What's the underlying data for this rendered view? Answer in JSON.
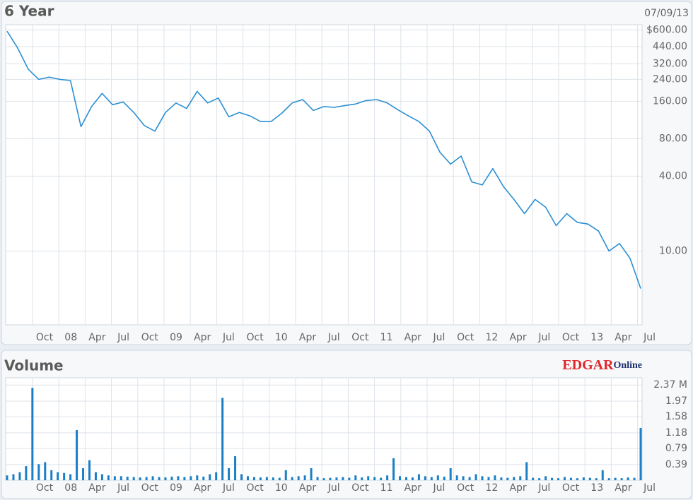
{
  "chart_data": [
    {
      "type": "line",
      "title": "6 Year",
      "date": "07/09/13",
      "color": "#2b8fd2",
      "log_scale": true,
      "grid": true,
      "ylim": [
        2.55,
        660
      ],
      "yticks": [
        {
          "value": 600,
          "label": "$600.00"
        },
        {
          "value": 440,
          "label": "440.00"
        },
        {
          "value": 320,
          "label": "320.00"
        },
        {
          "value": 240,
          "label": "240.00"
        },
        {
          "value": 160,
          "label": "160.00"
        },
        {
          "value": 80,
          "label": "80.00"
        },
        {
          "value": 40,
          "label": "40.00"
        },
        {
          "value": 10,
          "label": "10.00"
        }
      ],
      "x_labels": [
        "Oct",
        "08",
        "Apr",
        "Jul",
        "Oct",
        "09",
        "Apr",
        "Jul",
        "Oct",
        "10",
        "Apr",
        "Jul",
        "Oct",
        "11",
        "Apr",
        "Jul",
        "Oct",
        "12",
        "Apr",
        "Jul",
        "Oct",
        "13",
        "Apr",
        "Jul"
      ],
      "values": [
        585,
        430,
        290,
        240,
        250,
        240,
        235,
        100,
        145,
        185,
        150,
        158,
        130,
        102,
        92,
        130,
        155,
        140,
        192,
        155,
        170,
        120,
        130,
        122,
        110,
        110,
        128,
        155,
        165,
        135,
        145,
        143,
        148,
        152,
        162,
        165,
        155,
        137,
        122,
        110,
        92,
        62,
        50,
        58,
        36,
        34,
        46,
        33,
        26,
        20,
        26,
        22.5,
        16,
        20,
        17,
        16.5,
        14.5,
        10,
        11.5,
        8.7,
        5
      ]
    },
    {
      "type": "bar",
      "title": "Volume",
      "logo": [
        "EDGAR",
        "Online"
      ],
      "color": "#1a7fc4",
      "grid": true,
      "ylim": [
        0,
        2.55
      ],
      "yticks": [
        {
          "value": 2.37,
          "label": "2.37 M"
        },
        1.97,
        1.58,
        1.18,
        0.79,
        0.39
      ],
      "x_labels": [
        "Oct",
        "08",
        "Apr",
        "Jul",
        "Oct",
        "09",
        "Apr",
        "Jul",
        "Oct",
        "10",
        "Apr",
        "Jul",
        "Oct",
        "11",
        "Apr",
        "Jul",
        "Oct",
        "12",
        "Apr",
        "Jul",
        "Oct",
        "13",
        "Apr",
        "Jul"
      ],
      "values": [
        0.12,
        0.15,
        0.2,
        0.35,
        2.3,
        0.4,
        0.45,
        0.25,
        0.2,
        0.18,
        0.15,
        1.25,
        0.3,
        0.5,
        0.2,
        0.15,
        0.12,
        0.1,
        0.1,
        0.09,
        0.08,
        0.07,
        0.08,
        0.1,
        0.08,
        0.07,
        0.09,
        0.1,
        0.08,
        0.1,
        0.12,
        0.09,
        0.15,
        0.2,
        2.05,
        0.3,
        0.6,
        0.15,
        0.1,
        0.08,
        0.07,
        0.08,
        0.07,
        0.06,
        0.25,
        0.08,
        0.1,
        0.12,
        0.3,
        0.08,
        0.05,
        0.06,
        0.07,
        0.08,
        0.06,
        0.12,
        0.07,
        0.1,
        0.08,
        0.06,
        0.12,
        0.55,
        0.1,
        0.08,
        0.07,
        0.15,
        0.1,
        0.08,
        0.12,
        0.09,
        0.3,
        0.12,
        0.1,
        0.08,
        0.15,
        0.1,
        0.08,
        0.12,
        0.07,
        0.06,
        0.08,
        0.1,
        0.45,
        0.06,
        0.05,
        0.1,
        0.06,
        0.05,
        0.08,
        0.06,
        0.05,
        0.07,
        0.06,
        0.05,
        0.25,
        0.05,
        0.06,
        0.05,
        0.07,
        0.06,
        1.3
      ]
    }
  ]
}
